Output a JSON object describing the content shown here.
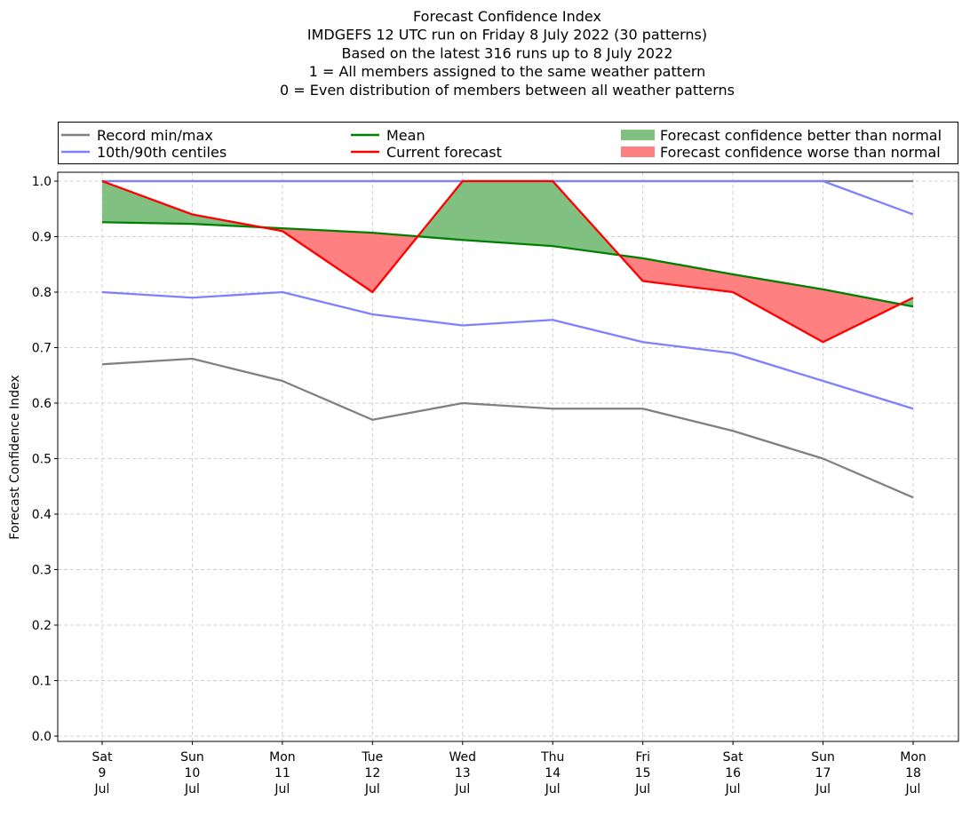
{
  "chart_data": {
    "type": "line",
    "title_lines": [
      "Forecast Confidence Index",
      "IMDGEFS 12 UTC run on Friday 8 July 2022 (30 patterns)",
      "Based on the latest 316 runs up to 8 July 2022",
      "1 = All members assigned to the same weather pattern",
      "0 = Even distribution of members between all weather patterns"
    ],
    "ylabel": "Forecast Confidence Index",
    "xlabel": "",
    "ylim": [
      0,
      1
    ],
    "yticks": [
      "0.0",
      "0.1",
      "0.2",
      "0.3",
      "0.4",
      "0.5",
      "0.6",
      "0.7",
      "0.8",
      "0.9",
      "1.0"
    ],
    "categories": [
      [
        "Sat",
        "9",
        "Jul"
      ],
      [
        "Sun",
        "10",
        "Jul"
      ],
      [
        "Mon",
        "11",
        "Jul"
      ],
      [
        "Tue",
        "12",
        "Jul"
      ],
      [
        "Wed",
        "13",
        "Jul"
      ],
      [
        "Thu",
        "14",
        "Jul"
      ],
      [
        "Fri",
        "15",
        "Jul"
      ],
      [
        "Sat",
        "16",
        "Jul"
      ],
      [
        "Sun",
        "17",
        "Jul"
      ],
      [
        "Mon",
        "18",
        "Jul"
      ]
    ],
    "grid": true,
    "legend_placement": "top, above plot",
    "legend": [
      {
        "label": "Record min/max",
        "kind": "line",
        "color": "#808080"
      },
      {
        "label": "10th/90th centiles",
        "kind": "line",
        "color": "#8080ff"
      },
      {
        "label": "Mean",
        "kind": "line",
        "color": "#008000"
      },
      {
        "label": "Current forecast",
        "kind": "line",
        "color": "#ff0000"
      },
      {
        "label": "Forecast confidence better than normal",
        "kind": "patch",
        "color": "#80c080"
      },
      {
        "label": "Forecast confidence worse than normal",
        "kind": "patch",
        "color": "#ff8080"
      }
    ],
    "series": [
      {
        "name": "Record max",
        "color": "#808080",
        "values": [
          1.0,
          1.0,
          1.0,
          1.0,
          1.0,
          1.0,
          1.0,
          1.0,
          1.0,
          1.0
        ]
      },
      {
        "name": "Record min",
        "color": "#808080",
        "values": [
          0.67,
          0.68,
          0.64,
          0.57,
          0.6,
          0.59,
          0.59,
          0.55,
          0.5,
          0.43
        ]
      },
      {
        "name": "90th centile",
        "color": "#8080ff",
        "values": [
          1.0,
          1.0,
          1.0,
          1.0,
          1.0,
          1.0,
          1.0,
          1.0,
          1.0,
          0.94
        ]
      },
      {
        "name": "10th centile",
        "color": "#8080ff",
        "values": [
          0.8,
          0.79,
          0.8,
          0.76,
          0.74,
          0.75,
          0.71,
          0.69,
          0.64,
          0.59
        ]
      },
      {
        "name": "Mean",
        "color": "#008000",
        "values": [
          0.926,
          0.923,
          0.915,
          0.907,
          0.894,
          0.883,
          0.861,
          0.832,
          0.805,
          0.774
        ]
      },
      {
        "name": "Current forecast",
        "color": "#ff0000",
        "values": [
          1.0,
          0.94,
          0.91,
          0.8,
          1.0,
          1.0,
          0.82,
          0.8,
          0.71,
          0.79
        ]
      }
    ]
  }
}
